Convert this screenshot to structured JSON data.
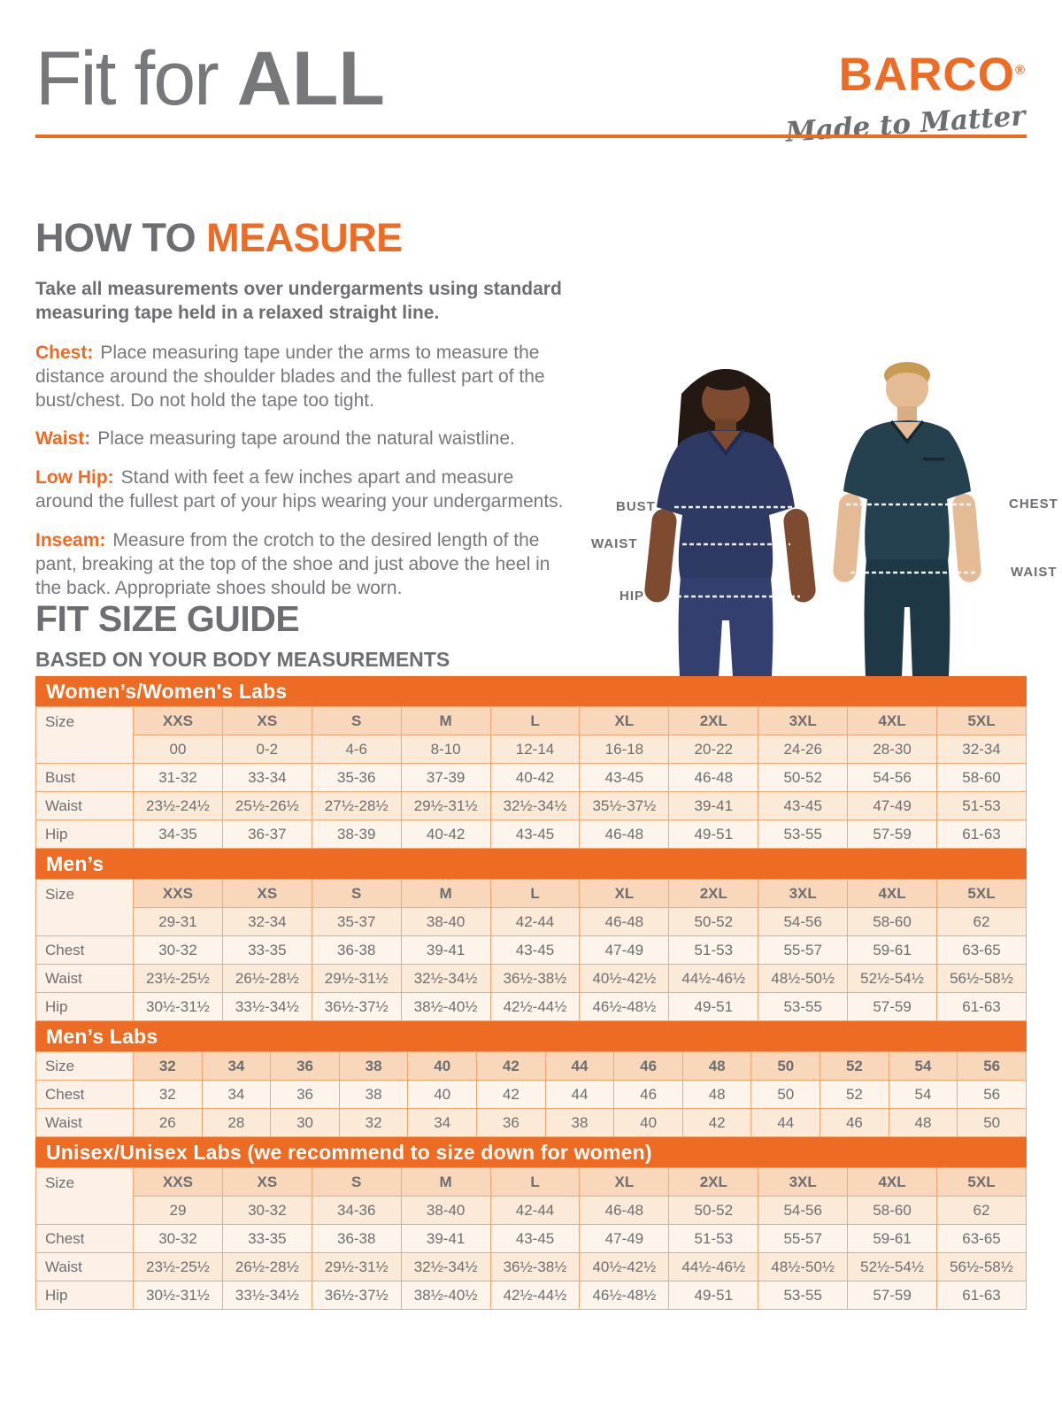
{
  "page": {
    "title_light": "Fit for",
    "title_bold": "ALL"
  },
  "brand": {
    "name": "BARCO",
    "registered": "®",
    "tagline": "Made to Matter"
  },
  "how_to_measure": {
    "heading_gray": "HOW TO",
    "heading_orange": "MEASURE",
    "intro": "Take all measurements over undergarments using standard measuring tape held in a relaxed straight line.",
    "items": [
      {
        "label": "Chest:",
        "text": "Place measuring tape under the arms to measure the distance around the shoulder blades and the fullest part of the bust/chest. Do not hold the tape too tight."
      },
      {
        "label": "Waist:",
        "text": "Place measuring tape around the natural waistline."
      },
      {
        "label": "Low Hip:",
        "text": "Stand with feet a few inches apart and measure around the fullest part of your hips wearing your undergarments."
      },
      {
        "label": "Inseam:",
        "text": "Measure from the crotch to the desired length of the pant, breaking at the top of the shoe and just above the heel in the back. Appropriate shoes should be worn."
      }
    ]
  },
  "figure": {
    "female_labels": [
      "BUST",
      "WAIST",
      "HIP"
    ],
    "male_labels": [
      "CHEST",
      "WAIST"
    ]
  },
  "size_guide": {
    "heading": "FIT SIZE GUIDE",
    "subheading": "BASED ON YOUR BODY MEASUREMENTS",
    "tables": [
      {
        "banner": "Women’s/Women's Labs",
        "size_label": "Size",
        "columns": [
          "XXS",
          "XS",
          "S",
          "M",
          "L",
          "XL",
          "2XL",
          "3XL",
          "4XL",
          "5XL"
        ],
        "sub_sizes": [
          "00",
          "0-2",
          "4-6",
          "8-10",
          "12-14",
          "16-18",
          "20-22",
          "24-26",
          "28-30",
          "32-34"
        ],
        "rows": [
          {
            "label": "Bust",
            "values": [
              "31-32",
              "33-34",
              "35-36",
              "37-39",
              "40-42",
              "43-45",
              "46-48",
              "50-52",
              "54-56",
              "58-60"
            ]
          },
          {
            "label": "Waist",
            "values": [
              "23½-24½",
              "25½-26½",
              "27½-28½",
              "29½-31½",
              "32½-34½",
              "35½-37½",
              "39-41",
              "43-45",
              "47-49",
              "51-53"
            ]
          },
          {
            "label": "Hip",
            "values": [
              "34-35",
              "36-37",
              "38-39",
              "40-42",
              "43-45",
              "46-48",
              "49-51",
              "53-55",
              "57-59",
              "61-63"
            ]
          }
        ]
      },
      {
        "banner": "Men’s",
        "size_label": "Size",
        "columns": [
          "XXS",
          "XS",
          "S",
          "M",
          "L",
          "XL",
          "2XL",
          "3XL",
          "4XL",
          "5XL"
        ],
        "sub_sizes": [
          "29-31",
          "32-34",
          "35-37",
          "38-40",
          "42-44",
          "46-48",
          "50-52",
          "54-56",
          "58-60",
          "62"
        ],
        "rows": [
          {
            "label": "Chest",
            "values": [
              "30-32",
              "33-35",
              "36-38",
              "39-41",
              "43-45",
              "47-49",
              "51-53",
              "55-57",
              "59-61",
              "63-65"
            ]
          },
          {
            "label": "Waist",
            "values": [
              "23½-25½",
              "26½-28½",
              "29½-31½",
              "32½-34½",
              "36½-38½",
              "40½-42½",
              "44½-46½",
              "48½-50½",
              "52½-54½",
              "56½-58½"
            ]
          },
          {
            "label": "Hip",
            "values": [
              "30½-31½",
              "33½-34½",
              "36½-37½",
              "38½-40½",
              "42½-44½",
              "46½-48½",
              "49-51",
              "53-55",
              "57-59",
              "61-63"
            ]
          }
        ]
      },
      {
        "banner": "Men’s Labs",
        "size_label": "Size",
        "columns": [
          "32",
          "34",
          "36",
          "38",
          "40",
          "42",
          "44",
          "46",
          "48",
          "50",
          "52",
          "54",
          "56"
        ],
        "sub_sizes": null,
        "rows": [
          {
            "label": "Chest",
            "values": [
              "32",
              "34",
              "36",
              "38",
              "40",
              "42",
              "44",
              "46",
              "48",
              "50",
              "52",
              "54",
              "56"
            ]
          },
          {
            "label": "Waist",
            "values": [
              "26",
              "28",
              "30",
              "32",
              "34",
              "36",
              "38",
              "40",
              "42",
              "44",
              "46",
              "48",
              "50"
            ]
          }
        ]
      },
      {
        "banner": "Unisex/Unisex Labs (we recommend to size down for women)",
        "size_label": "Size",
        "columns": [
          "XXS",
          "XS",
          "S",
          "M",
          "L",
          "XL",
          "2XL",
          "3XL",
          "4XL",
          "5XL"
        ],
        "sub_sizes": [
          "29",
          "30-32",
          "34-36",
          "38-40",
          "42-44",
          "46-48",
          "50-52",
          "54-56",
          "58-60",
          "62"
        ],
        "rows": [
          {
            "label": "Chest",
            "values": [
              "30-32",
              "33-35",
              "36-38",
              "39-41",
              "43-45",
              "47-49",
              "51-53",
              "55-57",
              "59-61",
              "63-65"
            ]
          },
          {
            "label": "Waist",
            "values": [
              "23½-25½",
              "26½-28½",
              "29½-31½",
              "32½-34½",
              "36½-38½",
              "40½-42½",
              "44½-46½",
              "48½-50½",
              "52½-54½",
              "56½-58½"
            ]
          },
          {
            "label": "Hip",
            "values": [
              "30½-31½",
              "33½-34½",
              "36½-37½",
              "38½-40½",
              "42½-44½",
              "46½-48½",
              "49-51",
              "53-55",
              "57-59",
              "61-63"
            ]
          }
        ]
      }
    ]
  },
  "colors": {
    "accent_orange": "#EE6B23",
    "heading_gray": "#6D6E71",
    "body_gray": "#77787B",
    "table_border": "#F3A772",
    "header_cell_bg": "#F9D7BA",
    "row_dark_bg": "#FCEAD9",
    "row_light_bg": "#FDF4EC",
    "label_cell_bg": "#FDF1E7",
    "female_scrub_navy": "#2E3A64",
    "male_scrub_teal": "#25404E"
  }
}
